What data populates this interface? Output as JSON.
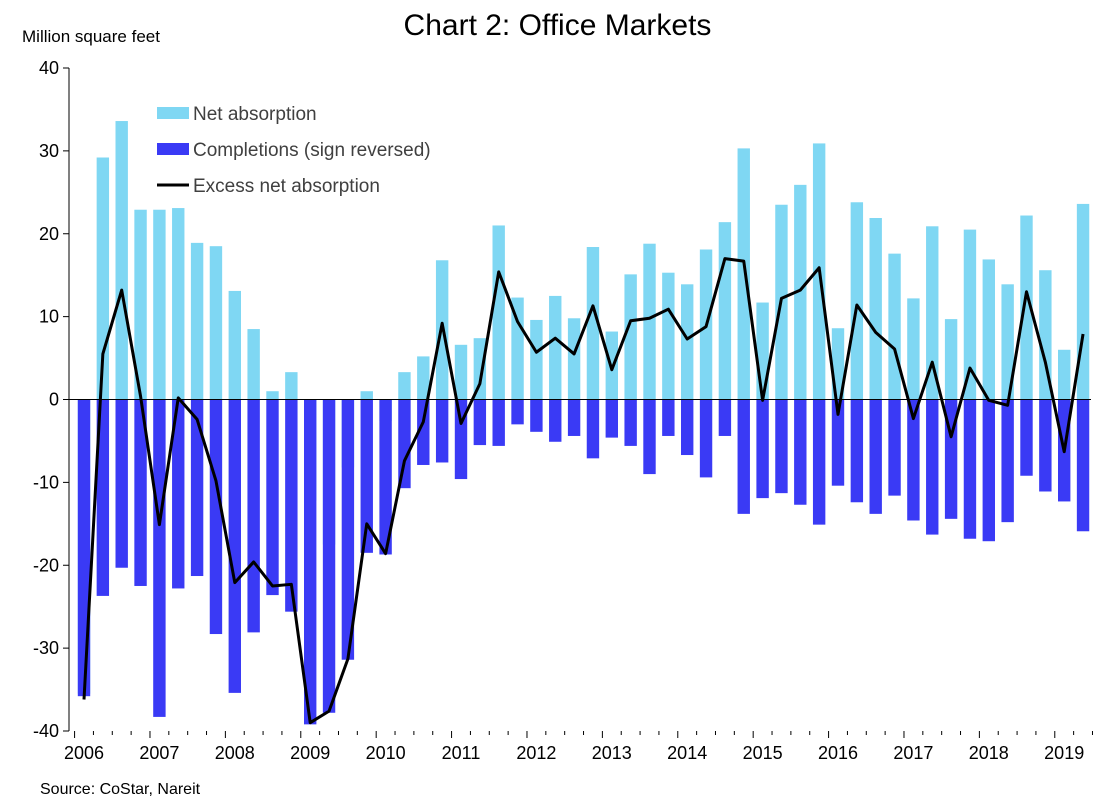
{
  "chart_data": {
    "type": "bar",
    "title": "Chart 2: Office Markets",
    "ylabel": "Million square feet",
    "source": "Source: CoStar, Nareit",
    "ylim": [
      -40,
      40
    ],
    "yticks": [
      "40",
      "30",
      "20",
      "10",
      "0",
      "-10",
      "-20",
      "-30",
      "-40"
    ],
    "x_tick_labels": [
      "2006",
      "2007",
      "2008",
      "2009",
      "2010",
      "2011",
      "2012",
      "2013",
      "2014",
      "2015",
      "2016",
      "2017",
      "2018",
      "2019"
    ],
    "periods_per_year": 4,
    "legend_position": "top-left",
    "colors": {
      "net_absorption": "#7fd7f3",
      "completions": "#3a3af5",
      "excess": "#000000"
    },
    "series": [
      {
        "name": "Net absorption",
        "kind": "bar",
        "values": [
          -35.5,
          29.2,
          33.6,
          22.9,
          22.9,
          23.1,
          18.9,
          18.5,
          13.1,
          8.5,
          1.0,
          3.3,
          -12.2,
          -17.5,
          -8.2,
          1.0,
          -2.6,
          3.3,
          5.2,
          16.8,
          6.6,
          7.4,
          21.0,
          12.3,
          9.6,
          12.5,
          9.8,
          18.4,
          8.2,
          15.1,
          18.8,
          15.3,
          13.9,
          18.1,
          21.4,
          30.3,
          11.7,
          23.5,
          25.9,
          30.9,
          8.6,
          23.8,
          21.9,
          17.6,
          12.2,
          20.9,
          9.7,
          20.5,
          16.9,
          13.9,
          22.2,
          15.6,
          6.0,
          23.6
        ]
      },
      {
        "name": "Completions (sign reversed)",
        "kind": "bar",
        "values": [
          -35.8,
          -23.7,
          -20.3,
          -22.5,
          -38.3,
          -22.8,
          -21.3,
          -28.3,
          -35.4,
          -28.1,
          -23.6,
          -25.6,
          -39.2,
          -37.8,
          -31.4,
          -18.5,
          -18.7,
          -10.7,
          -7.9,
          -7.6,
          -9.6,
          -5.5,
          -5.6,
          -3.0,
          -3.9,
          -5.1,
          -4.4,
          -7.1,
          -4.6,
          -5.6,
          -9.0,
          -4.4,
          -6.7,
          -9.4,
          -4.4,
          -13.8,
          -11.9,
          -11.3,
          -12.7,
          -15.1,
          -10.4,
          -12.4,
          -13.8,
          -11.6,
          -14.6,
          -16.3,
          -14.4,
          -16.8,
          -17.1,
          -14.8,
          -9.2,
          -11.1,
          -12.3,
          -15.9
        ]
      },
      {
        "name": "Excess net absorption",
        "kind": "line",
        "values": [
          -36.2,
          5.5,
          13.2,
          0.4,
          -15.1,
          0.2,
          -2.4,
          -9.8,
          -22.1,
          -19.6,
          -22.5,
          -22.3,
          -39.0,
          -37.6,
          -31.3,
          -15.0,
          -18.6,
          -7.4,
          -2.7,
          9.2,
          -2.9,
          1.9,
          15.4,
          9.4,
          5.7,
          7.4,
          5.5,
          11.3,
          3.6,
          9.5,
          9.8,
          10.9,
          7.3,
          8.8,
          17.0,
          16.7,
          -0.1,
          12.2,
          13.2,
          15.9,
          -1.8,
          11.4,
          8.1,
          6.1,
          -2.3,
          4.5,
          -4.5,
          3.8,
          -0.1,
          -0.7,
          13.0,
          4.5,
          -6.3,
          7.9
        ]
      }
    ]
  }
}
